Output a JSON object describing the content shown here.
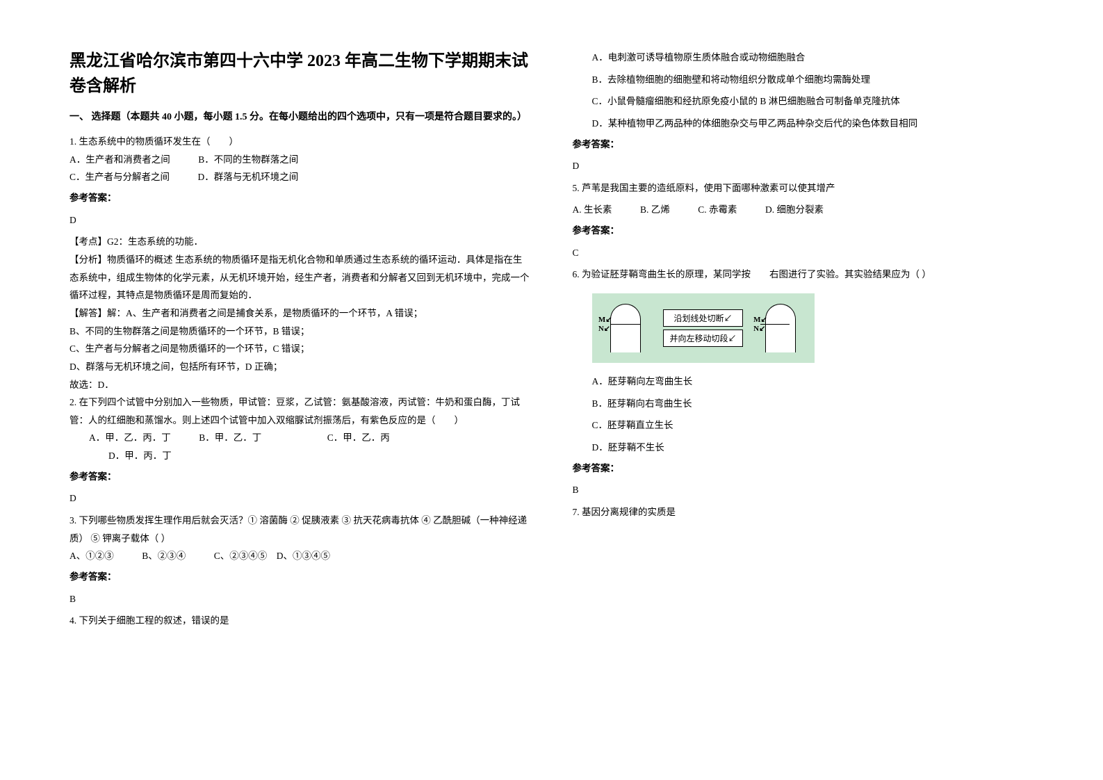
{
  "title": "黑龙江省哈尔滨市第四十六中学 2023 年高二生物下学期期末试卷含解析",
  "section1": "一、 选择题（本题共 40 小题，每小题 1.5 分。在每小题给出的四个选项中，只有一项是符合题目要求的。）",
  "q1": {
    "stem": "1. 生态系统中的物质循环发生在（　　）",
    "a": "A．生产者和消费者之间",
    "b": "B．不同的生物群落之间",
    "c": "C．生产者与分解者之间",
    "d": "D．群落与无机环境之间",
    "ansLabel": "参考答案：",
    "ansVal": "D",
    "e1": "【考点】G2：生态系统的功能．",
    "e2": "【分析】物质循环的概述  生态系统的物质循环是指无机化合物和单质通过生态系统的循环运动．具体是指在生态系统中，组成生物体的化学元素，从无机环境开始，经生产者，消费者和分解者又回到无机环境中，完成一个循环过程，其特点是物质循环是周而复始的．",
    "e3": "【解答】解：A、生产者和消费者之间是捕食关系，是物质循环的一个环节，A 错误；",
    "e4": "B、不同的生物群落之间是物质循环的一个环节，B 错误；",
    "e5": "C、生产者与分解者之间是物质循环的一个环节，C 错误；",
    "e6": "D、群落与无机环境之间，包括所有环节，D 正确；",
    "e7": "故选：D．"
  },
  "q2": {
    "stem": "2. 在下列四个试管中分别加入一些物质，甲试管：豆浆，乙试管：氨基酸溶液，丙试管：牛奶和蛋白酶，丁试管：人的红细胞和蒸馏水。则上述四个试管中加入双缩脲试剂振荡后，有紫色反应的是（　　）",
    "a": "A．甲．乙．丙．丁",
    "b": "B．甲．乙．丁",
    "c": "C．甲．乙．丙",
    "d": "D．甲．丙．丁",
    "ansLabel": "参考答案：",
    "ansVal": "D"
  },
  "q3": {
    "stem": "3. 下列哪些物质发挥生理作用后就会灭活？① 溶菌酶 ② 促胰液素 ③ 抗天花病毒抗体 ④ 乙酰胆碱（一种神经递质） ⑤ 钾离子载体（ ）",
    "opts": "A、①②③　　　B、②③④　　　C、②③④⑤　D、①③④⑤",
    "ansLabel": "参考答案：",
    "ansVal": "B"
  },
  "q4": {
    "stem": "4. 下列关于细胞工程的叙述，错误的是",
    "a": "A．电刺激可诱导植物原生质体融合或动物细胞融合",
    "b": "B．去除植物细胞的细胞壁和将动物组织分散成单个细胞均需酶处理",
    "c": "C．小鼠骨髓瘤细胞和经抗原免疫小鼠的 B 淋巴细胞融合可制备单克隆抗体",
    "d": "D．某种植物甲乙两品种的体细胞杂交与甲乙两品种杂交后代的染色体数目相同",
    "ansLabel": "参考答案：",
    "ansVal": "D"
  },
  "q5": {
    "stem": "5. 芦苇是我国主要的造纸原料，使用下面哪种激素可以使其增产",
    "a": "A. 生长素",
    "b": "B. 乙烯",
    "c": "C. 赤霉素",
    "d": "D. 细胞分裂素",
    "ansLabel": "参考答案：",
    "ansVal": "C"
  },
  "q6": {
    "stem": "6. 为验证胚芽鞘弯曲生长的原理，某同学按　　右图进行了实验。其实验结果应为（ ）",
    "a": "A．胚芽鞘向左弯曲生长",
    "b": "B．胚芽鞘向右弯曲生长",
    "c": "C．胚芽鞘直立生长",
    "d": "D．胚芽鞘不生长",
    "ansLabel": "参考答案：",
    "ansVal": "B",
    "diag1": "沿划线处切断↙",
    "diag2": "并向左移动切段↙",
    "m": "M↙",
    "n": "N↙"
  },
  "q7": {
    "stem": "7. 基因分离规律的实质是"
  }
}
